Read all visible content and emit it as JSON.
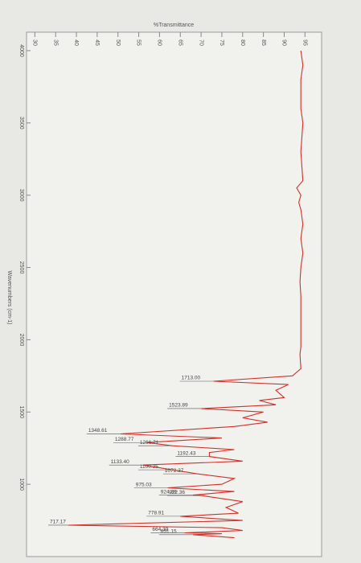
{
  "chart_data": {
    "type": "line",
    "xlabel": "%Transmittance",
    "ylabel": "Wavenumbers (cm-1)",
    "xlim": [
      28,
      99
    ],
    "xticks": [
      30,
      35,
      40,
      45,
      50,
      55,
      60,
      65,
      70,
      75,
      80,
      85,
      90,
      95
    ],
    "ylim": [
      4100,
      500
    ],
    "yticks": [
      4000,
      3500,
      3000,
      2500,
      2000,
      1500,
      1000
    ],
    "series": [
      {
        "color": "#d0302a",
        "x": [
          4000,
          3900,
          3800,
          3600,
          3500,
          3300,
          3100,
          3050,
          3000,
          2950,
          2900,
          2800,
          2700,
          2600,
          2500,
          2400,
          2300,
          2200,
          2100,
          2000,
          1950,
          1900,
          1800,
          1750,
          1713,
          1690,
          1650,
          1600,
          1580,
          1550,
          1523.89,
          1500,
          1460,
          1430,
          1400,
          1348.61,
          1320,
          1288.77,
          1266.71,
          1240,
          1220,
          1192.43,
          1160,
          1133.4,
          1100.25,
          1072.37,
          1040,
          1000,
          975.03,
          950,
          924.89,
          922.36,
          880,
          840,
          800,
          778.91,
          750,
          717.17,
          700,
          680,
          664.39,
          658,
          651.15,
          630
        ],
        "values": [
          94,
          94.5,
          94,
          94,
          94.5,
          94,
          94.5,
          93,
          94,
          93.5,
          94,
          94.5,
          94,
          94.5,
          94,
          93.8,
          94,
          94,
          94,
          94,
          94,
          93.8,
          94,
          92,
          73,
          91,
          88,
          90,
          84,
          88,
          70,
          85,
          80,
          86,
          78,
          50.6,
          75,
          57,
          63,
          78,
          72,
          72,
          80,
          56,
          63,
          69,
          78,
          75,
          62,
          78,
          68,
          70,
          80,
          76,
          79,
          65,
          80,
          38,
          75,
          80,
          66,
          75,
          68,
          78
        ]
      }
    ],
    "peaks": {
      "x": [
        1713,
        1523.89,
        1348.61,
        1288.77,
        1266.71,
        1192.43,
        1133.4,
        1100.25,
        1072.37,
        975.03,
        924.89,
        922.36,
        778.91,
        717.17,
        664.39,
        651.15
      ],
      "value_labels": [
        "1713.00",
        "1523.89",
        "1348.61",
        "1288.77",
        "1266.71",
        "1192.43",
        "1133.40",
        "1100.25",
        "1072.37",
        "975.03",
        "924.89",
        "922.36",
        "778.91",
        "717.17",
        "664.39",
        "651.15"
      ],
      "values": [
        73,
        70,
        50.6,
        57,
        63,
        72,
        56,
        63,
        69,
        62,
        68,
        70,
        65,
        38,
        66,
        68
      ]
    }
  }
}
